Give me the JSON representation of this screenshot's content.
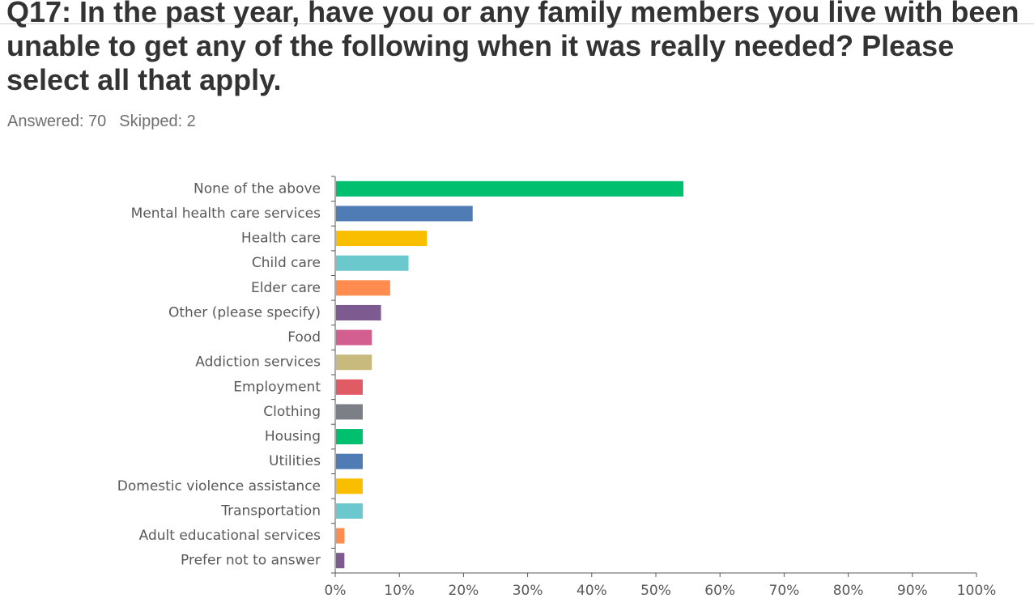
{
  "header": {
    "title": "Q17: In the past year, have you or any family members you live with been unable to get any of the following when it was really needed? Please select all that apply.",
    "answered": "Answered: 70",
    "skipped": "Skipped: 2"
  },
  "chart_data": {
    "type": "bar",
    "orientation": "horizontal",
    "title": "",
    "xlabel": "",
    "ylabel": "",
    "xlim": [
      0,
      100
    ],
    "grid": false,
    "categories": [
      "None of the above",
      "Mental health care services",
      "Health care",
      "Child care",
      "Elder care",
      "Other (please specify)",
      "Food",
      "Addiction services",
      "Employment",
      "Clothing",
      "Housing",
      "Utilities",
      "Domestic violence assistance",
      "Transportation",
      "Adult educational services",
      "Prefer not to answer"
    ],
    "values": [
      54.29,
      21.43,
      14.29,
      11.43,
      8.57,
      7.14,
      5.71,
      5.71,
      4.29,
      4.29,
      4.29,
      4.29,
      4.29,
      4.29,
      1.43,
      1.43
    ],
    "colors": [
      "#00bf6f",
      "#507cb6",
      "#f9be00",
      "#6bc8cd",
      "#ff8b4f",
      "#7d5a8f",
      "#d25f90",
      "#c8b97c",
      "#e05b63",
      "#7c8086",
      "#00bf6f",
      "#507cb6",
      "#f9be00",
      "#6bc8cd",
      "#ff8b4f",
      "#7d5a8f"
    ],
    "x_ticks": [
      "0%",
      "10%",
      "20%",
      "30%",
      "40%",
      "50%",
      "60%",
      "70%",
      "80%",
      "90%",
      "100%"
    ],
    "x_tick_values": [
      0,
      10,
      20,
      30,
      40,
      50,
      60,
      70,
      80,
      90,
      100
    ]
  }
}
